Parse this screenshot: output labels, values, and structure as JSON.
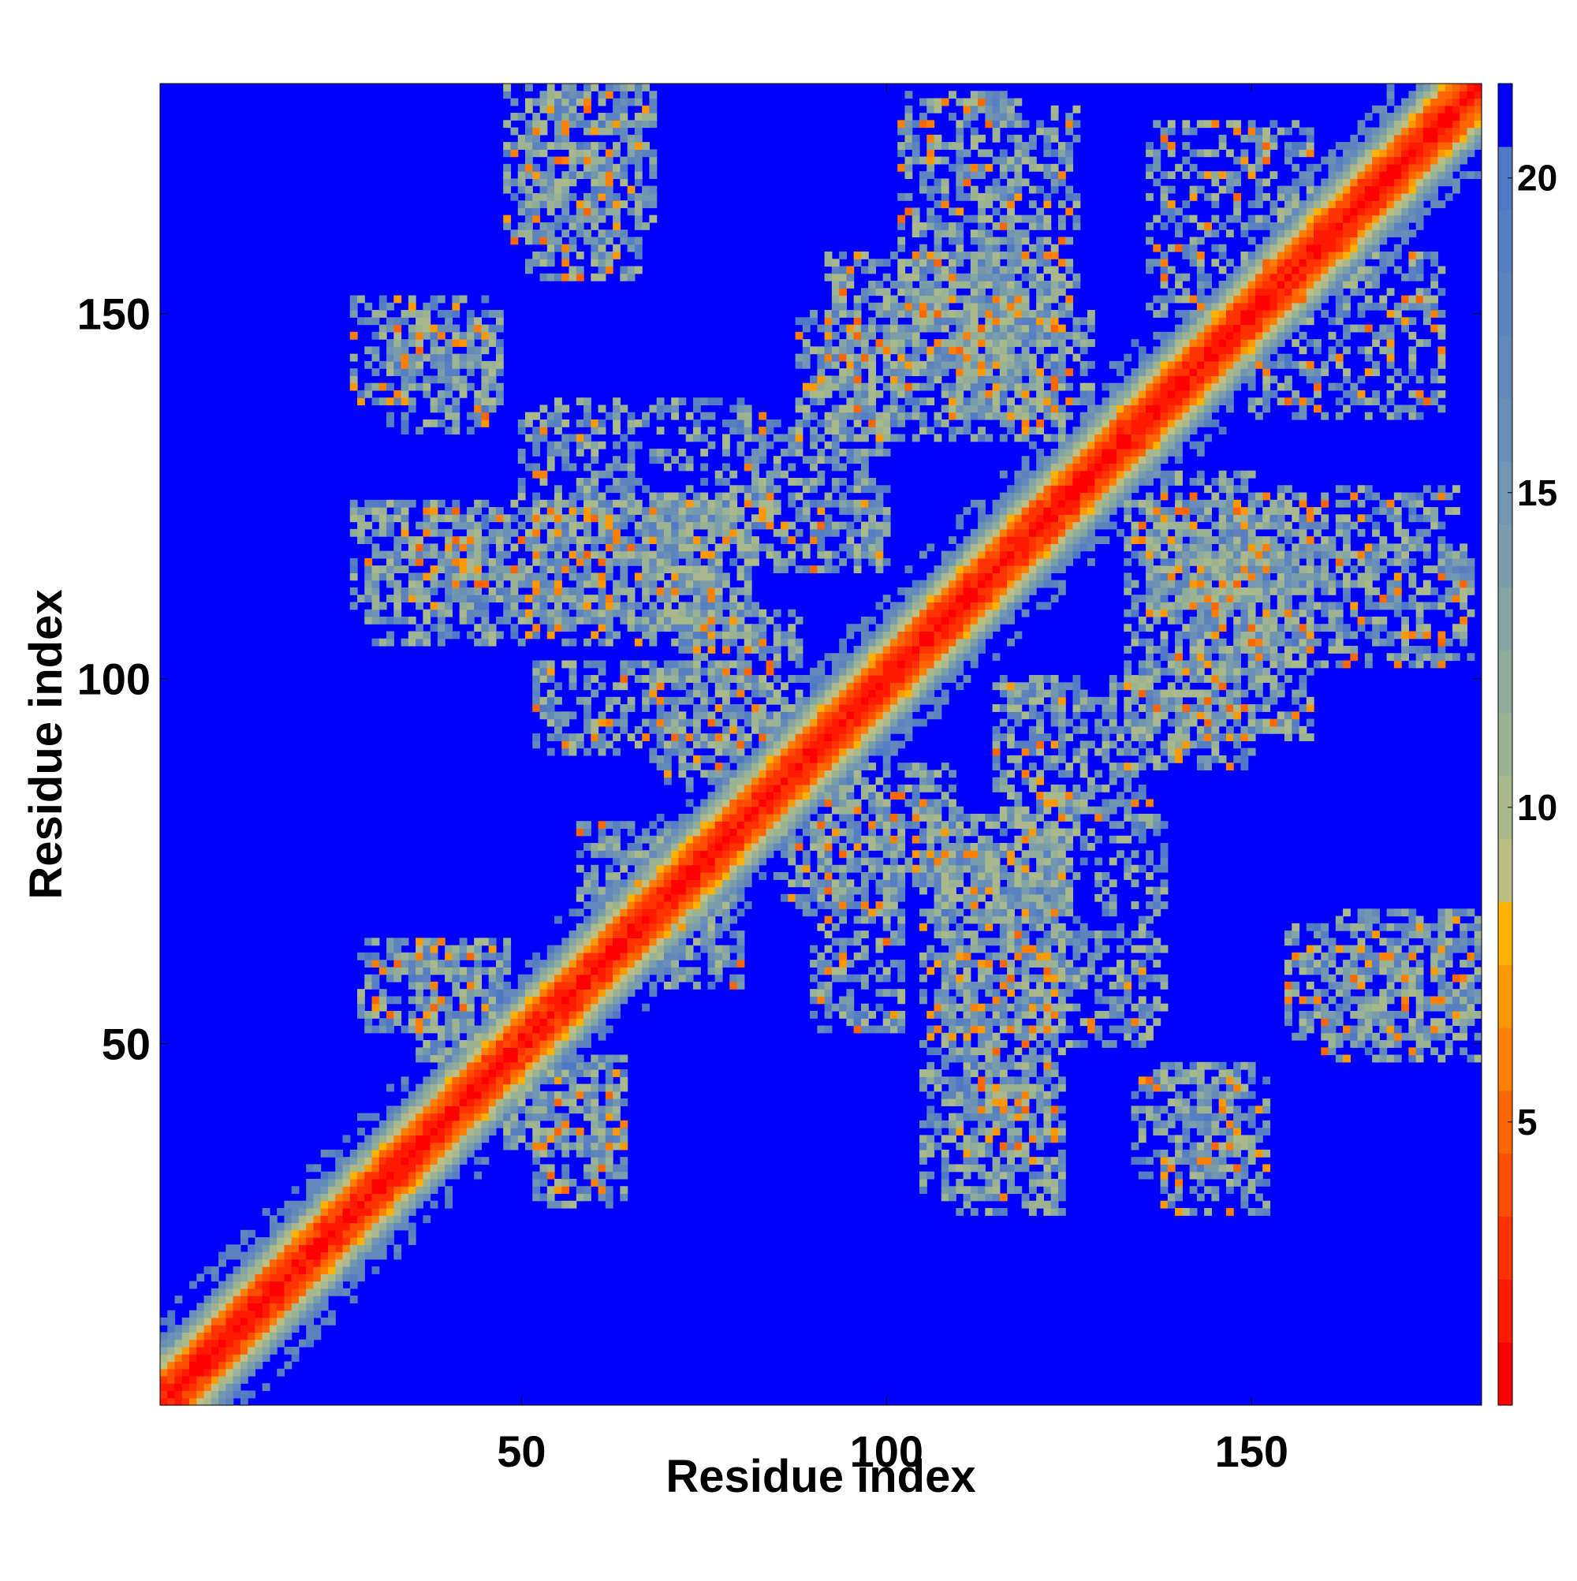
{
  "chart_data": {
    "type": "heatmap",
    "title": "",
    "xlabel": "Residue index",
    "ylabel": "Residue index",
    "n_residues": 181,
    "xlim": [
      1,
      181
    ],
    "ylim": [
      1,
      181
    ],
    "x_ticks": [
      50,
      100,
      150
    ],
    "y_ticks": [
      50,
      100,
      150
    ],
    "colorbar": {
      "ticks": [
        5,
        10,
        15,
        20
      ],
      "min": 0.5,
      "max": 21.5,
      "levels": [
        {
          "upper": 1.5,
          "color": "#ff0000"
        },
        {
          "upper": 2.5,
          "color": "#ff1a00"
        },
        {
          "upper": 3.5,
          "color": "#ff3300"
        },
        {
          "upper": 4.5,
          "color": "#ff4d00"
        },
        {
          "upper": 5.5,
          "color": "#ff6600"
        },
        {
          "upper": 6.5,
          "color": "#ff8000"
        },
        {
          "upper": 7.5,
          "color": "#ff9900"
        },
        {
          "upper": 8.5,
          "color": "#ffb300"
        },
        {
          "upper": 9.5,
          "color": "#bdbf84"
        },
        {
          "upper": 10.5,
          "color": "#a9b98c"
        },
        {
          "upper": 11.5,
          "color": "#9bb393"
        },
        {
          "upper": 12.5,
          "color": "#8fac9b"
        },
        {
          "upper": 13.5,
          "color": "#84a5a3"
        },
        {
          "upper": 14.5,
          "color": "#7a9dab"
        },
        {
          "upper": 15.5,
          "color": "#7196b1"
        },
        {
          "upper": 16.5,
          "color": "#6a8fb6"
        },
        {
          "upper": 17.5,
          "color": "#6389ba"
        },
        {
          "upper": 18.5,
          "color": "#5c83be"
        },
        {
          "upper": 19.5,
          "color": "#567ec2"
        },
        {
          "upper": 20.5,
          "color": "#5079c5"
        },
        {
          "upper": 21.5,
          "color": "#0000ff"
        }
      ]
    },
    "background_color": "#0000ff",
    "diagonal_band_color": "#ff0000",
    "contact_regions": [
      {
        "x": [
          48,
          68
        ],
        "y": [
          160,
          181
        ],
        "density": 0.45
      },
      {
        "x": [
          27,
          47
        ],
        "y": [
          138,
          152
        ],
        "density": 0.45
      },
      {
        "x": [
          27,
          52
        ],
        "y": [
          108,
          124
        ],
        "density": 0.5
      },
      {
        "x": [
          52,
          80
        ],
        "y": [
          108,
          124
        ],
        "density": 0.6
      },
      {
        "x": [
          52,
          72
        ],
        "y": [
          90,
          102
        ],
        "density": 0.45
      },
      {
        "x": [
          88,
          102
        ],
        "y": [
          136,
          150
        ],
        "density": 0.55
      },
      {
        "x": [
          102,
          118
        ],
        "y": [
          142,
          180
        ],
        "density": 0.5
      },
      {
        "x": [
          108,
          128
        ],
        "y": [
          136,
          150
        ],
        "density": 0.6
      },
      {
        "x": [
          72,
          88
        ],
        "y": [
          92,
          110
        ],
        "density": 0.5
      },
      {
        "x": [
          115,
          135
        ],
        "y": [
          82,
          100
        ],
        "density": 0.55
      },
      {
        "x": [
          133,
          158
        ],
        "y": [
          92,
          124
        ],
        "density": 0.6
      },
      {
        "x": [
          146,
          178
        ],
        "y": [
          112,
          126
        ],
        "density": 0.45
      },
      {
        "x": [
          136,
          158
        ],
        "y": [
          150,
          176
        ],
        "density": 0.4
      },
      {
        "x": [
          28,
          46
        ],
        "y": [
          52,
          64
        ],
        "density": 0.6
      },
      {
        "x": [
          48,
          64
        ],
        "y": [
          36,
          48
        ],
        "density": 0.55
      },
      {
        "x": [
          58,
          78
        ],
        "y": [
          62,
          80
        ],
        "density": 0.45
      },
      {
        "x": [
          86,
          102
        ],
        "y": [
          68,
          84
        ],
        "density": 0.5
      },
      {
        "x": [
          105,
          125
        ],
        "y": [
          54,
          82
        ],
        "density": 0.55
      },
      {
        "x": [
          105,
          122
        ],
        "y": [
          30,
          52
        ],
        "density": 0.5
      },
      {
        "x": [
          122,
          138
        ],
        "y": [
          50,
          84
        ],
        "density": 0.4
      },
      {
        "x": [
          134,
          148
        ],
        "y": [
          32,
          46
        ],
        "density": 0.45
      },
      {
        "x": [
          155,
          181
        ],
        "y": [
          51,
          66
        ],
        "density": 0.5
      }
    ]
  }
}
